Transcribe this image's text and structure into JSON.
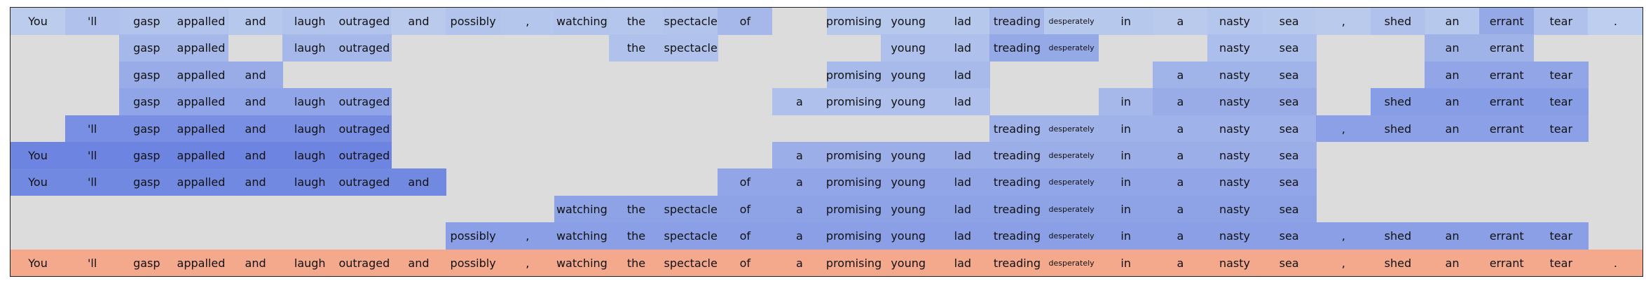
{
  "tokens": [
    "You",
    "'ll",
    "gasp",
    "appalled",
    "and",
    "laugh",
    "outraged",
    "and",
    "possibly",
    ",",
    "watching",
    "the",
    "spectacle",
    "of",
    "a",
    "promising",
    "young",
    "lad",
    "treading",
    "desperately",
    "in",
    "a",
    "nasty",
    "sea",
    ",",
    "shed",
    "an",
    "errant",
    "tear",
    "."
  ],
  "rows": [
    {
      "kind": "heat",
      "cells": [
        0.1,
        0.2,
        0.18,
        0.18,
        0.14,
        0.18,
        0.18,
        0.12,
        0.18,
        0.16,
        0.18,
        0.16,
        0.18,
        0.3,
        null,
        0.14,
        0.14,
        0.14,
        0.3,
        0.14,
        0.14,
        0.12,
        0.16,
        0.14,
        0.12,
        0.2,
        0.14,
        0.45,
        0.2,
        0.08
      ]
    },
    {
      "kind": "heat",
      "cells": [
        null,
        null,
        0.3,
        0.3,
        null,
        0.3,
        0.3,
        null,
        null,
        null,
        null,
        0.2,
        0.2,
        null,
        null,
        null,
        0.22,
        0.22,
        0.45,
        0.45,
        null,
        null,
        0.24,
        0.24,
        null,
        null,
        0.35,
        0.35,
        null,
        null
      ]
    },
    {
      "kind": "heat",
      "cells": [
        null,
        null,
        0.42,
        0.42,
        0.42,
        null,
        null,
        null,
        null,
        null,
        null,
        null,
        null,
        null,
        null,
        0.28,
        0.28,
        0.28,
        null,
        null,
        null,
        0.34,
        0.34,
        0.34,
        null,
        null,
        0.48,
        0.48,
        0.48,
        null
      ]
    },
    {
      "kind": "heat",
      "cells": [
        null,
        null,
        0.5,
        0.5,
        0.5,
        0.5,
        0.5,
        null,
        null,
        null,
        null,
        null,
        null,
        null,
        0.22,
        0.22,
        0.22,
        0.22,
        null,
        null,
        0.3,
        0.42,
        0.42,
        0.42,
        null,
        0.58,
        0.58,
        0.58,
        0.58,
        null
      ]
    },
    {
      "kind": "heat",
      "cells": [
        null,
        0.72,
        0.72,
        0.72,
        0.72,
        0.72,
        0.72,
        null,
        null,
        null,
        null,
        null,
        null,
        null,
        null,
        null,
        null,
        null,
        0.36,
        0.36,
        0.36,
        0.36,
        0.36,
        0.36,
        0.55,
        0.55,
        0.55,
        0.55,
        0.55,
        null
      ]
    },
    {
      "kind": "heat",
      "cells": [
        0.82,
        0.82,
        0.82,
        0.82,
        0.82,
        0.82,
        0.82,
        null,
        null,
        null,
        null,
        null,
        null,
        null,
        0.4,
        0.4,
        0.4,
        0.4,
        0.4,
        0.4,
        0.4,
        0.4,
        0.4,
        0.4,
        null,
        null,
        null,
        null,
        null,
        null
      ]
    },
    {
      "kind": "heat",
      "cells": [
        0.78,
        0.78,
        0.78,
        0.78,
        0.78,
        0.78,
        0.78,
        0.78,
        null,
        null,
        null,
        null,
        null,
        0.48,
        0.48,
        0.48,
        0.48,
        0.48,
        0.48,
        0.48,
        0.48,
        0.48,
        0.48,
        0.48,
        null,
        null,
        null,
        null,
        null,
        null
      ]
    },
    {
      "kind": "heat",
      "cells": [
        null,
        null,
        null,
        null,
        null,
        null,
        null,
        null,
        null,
        null,
        0.52,
        0.52,
        0.52,
        0.52,
        0.52,
        0.52,
        0.52,
        0.52,
        0.52,
        0.52,
        0.52,
        0.52,
        0.52,
        0.52,
        null,
        null,
        null,
        null,
        null,
        null
      ]
    },
    {
      "kind": "heat",
      "cells": [
        null,
        null,
        null,
        null,
        null,
        null,
        null,
        null,
        0.56,
        0.56,
        0.56,
        0.56,
        0.56,
        0.56,
        0.56,
        0.56,
        0.56,
        0.56,
        0.56,
        0.56,
        0.56,
        0.56,
        0.56,
        0.56,
        0.56,
        0.56,
        0.56,
        0.56,
        0.56,
        null
      ]
    },
    {
      "kind": "full"
    }
  ],
  "colors": {
    "background": "#dcdcdc",
    "full_row": "#f4a98d",
    "heat_low": "#c6d6ef",
    "heat_high": "#5a73de",
    "border": "#222222"
  },
  "small_tokens": [
    "desperately"
  ]
}
